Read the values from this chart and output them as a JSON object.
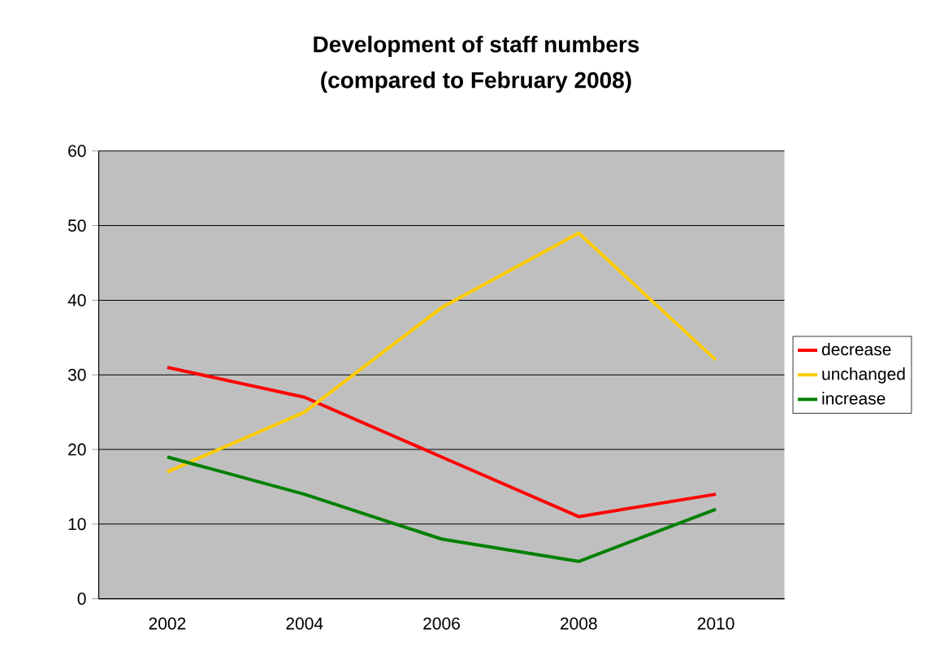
{
  "chart_data": {
    "type": "line",
    "title": "Development of staff numbers",
    "subtitle": "(compared to February 2008)",
    "categories": [
      "2002",
      "2004",
      "2006",
      "2008",
      "2010"
    ],
    "series": [
      {
        "name": "decrease",
        "color": "#ff0000",
        "values": [
          31,
          27,
          19,
          11,
          14
        ]
      },
      {
        "name": "unchanged",
        "color": "#ffcc00",
        "values": [
          17,
          25,
          39,
          49,
          32
        ]
      },
      {
        "name": "increase",
        "color": "#008000",
        "values": [
          19,
          14,
          8,
          5,
          12
        ]
      }
    ],
    "ylim": [
      0,
      60
    ],
    "yticks": [
      0,
      10,
      20,
      30,
      40,
      50,
      60
    ],
    "grid": "y",
    "legend": "right"
  }
}
